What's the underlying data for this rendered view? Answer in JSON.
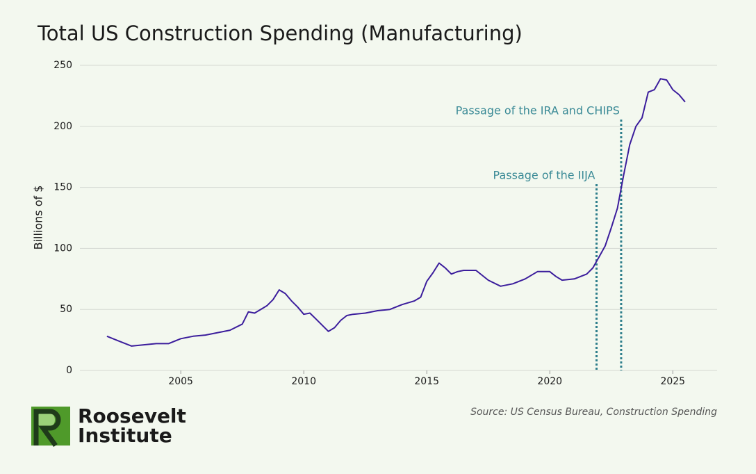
{
  "chart_data": {
    "type": "line",
    "title": "Total US Construction Spending (Manufacturing)",
    "y_label": "Billions of $",
    "x": [
      2002.0,
      2002.5,
      2003.0,
      2003.5,
      2004.0,
      2004.5,
      2005.0,
      2005.5,
      2006.0,
      2006.5,
      2007.0,
      2007.5,
      2007.75,
      2008.0,
      2008.5,
      2008.75,
      2009.0,
      2009.25,
      2009.5,
      2009.75,
      2010.0,
      2010.25,
      2010.5,
      2011.0,
      2011.25,
      2011.5,
      2011.75,
      2012.0,
      2012.5,
      2013.0,
      2013.5,
      2014.0,
      2014.5,
      2014.75,
      2015.0,
      2015.25,
      2015.5,
      2015.75,
      2016.0,
      2016.25,
      2016.5,
      2017.0,
      2017.5,
      2018.0,
      2018.5,
      2019.0,
      2019.5,
      2020.0,
      2020.25,
      2020.5,
      2021.0,
      2021.5,
      2021.75,
      2022.0,
      2022.25,
      2022.5,
      2022.75,
      2023.0,
      2023.25,
      2023.5,
      2023.75,
      2024.0,
      2024.25,
      2024.5,
      2024.75,
      2025.0,
      2025.25,
      2025.5
    ],
    "values": [
      28,
      24,
      20,
      21,
      22,
      22,
      26,
      28,
      29,
      31,
      33,
      38,
      48,
      47,
      53,
      58,
      66,
      63,
      57,
      52,
      46,
      47,
      42,
      32,
      35,
      41,
      45,
      46,
      47,
      49,
      50,
      54,
      57,
      60,
      73,
      80,
      88,
      84,
      79,
      81,
      82,
      82,
      74,
      69,
      71,
      75,
      81,
      81,
      77,
      74,
      75,
      79,
      84,
      93,
      102,
      117,
      133,
      160,
      185,
      200,
      207,
      228,
      230,
      239,
      238,
      230,
      226,
      220
    ],
    "color": "#3b1d9c",
    "xlim": [
      2000.9,
      2026.8
    ],
    "xticks": [
      2005,
      2010,
      2015,
      2020,
      2025
    ],
    "ylim": [
      0,
      250
    ],
    "yticks": [
      0,
      50,
      100,
      150,
      200,
      250
    ],
    "grid": true,
    "annotations": [
      {
        "text": "Passage of the IIJA",
        "x": 2021.9
      },
      {
        "text": "Passage of the IRA and CHIPS",
        "x": 2022.9
      }
    ]
  },
  "source": "Source: US Census Bureau, Construction Spending",
  "brand": {
    "line1": "Roosevelt",
    "line2": "Institute"
  }
}
